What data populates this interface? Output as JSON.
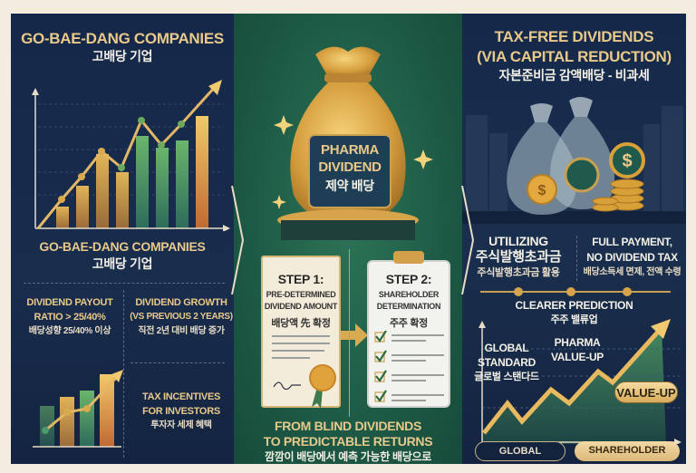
{
  "left": {
    "title_en": "GO-BAE-DANG COMPANIES",
    "title_ko": "고배당 기업",
    "subtitle_en": "GO-BAE-DANG COMPANIES",
    "subtitle_ko": "고배당 기업",
    "payout": {
      "line1": "DIVIDEND PAYOUT",
      "line2": "RATIO > 25/40%",
      "ko": "배당성향 25/40% 이상"
    },
    "growth": {
      "line1": "DIVIDEND GROWTH",
      "line2": "(VS PREVIOUS 2 YEARS)",
      "ko": "직전 2년 대비 배당 증가"
    },
    "tax": {
      "line1": "TAX INCENTIVES",
      "line2": "FOR INVESTORS",
      "ko": "투자자 세제 혜택"
    }
  },
  "center": {
    "bag_label": {
      "line1": "PHARMA",
      "line2": "DIVIDEND",
      "ko": "제약 배당"
    },
    "step1": {
      "title": "STEP 1:",
      "line1": "PRE-DETERMINED",
      "line2": "DIVIDEND AMOUNT",
      "ko": "배당액 先 확정"
    },
    "step2": {
      "title": "STEP 2:",
      "line1": "SHAREHOLDER",
      "line2": "DETERMINATION",
      "ko": "주주 확정"
    },
    "footer": {
      "line1": "FROM BLIND DIVIDENDS",
      "line2": "TO PREDICTABLE RETURNS",
      "ko": "깜깜이 배당에서 예측 가능한 배당으로"
    }
  },
  "right": {
    "title_line1": "TAX-FREE DIVIDENDS",
    "title_line2": "(VIA CAPITAL REDUCTION)",
    "title_ko": "자본준비금 감액배당 - 비과세",
    "utilizing": {
      "line1": "UTILIZING",
      "line2": "주식발행초과금",
      "ko": "주식발행초과금 활용"
    },
    "full_payment": {
      "line1": "FULL PAYMENT,",
      "line2": "NO DIVIDEND TAX",
      "ko": "배당소득세 면제, 전액 수령"
    },
    "clearer": {
      "en": "CLEARER PREDICTION",
      "ko": "주주 밸류업"
    },
    "global": {
      "line1": "GLOBAL",
      "line2": "STANDARD",
      "ko": "글로벌 스탠다드"
    },
    "pharma": {
      "line1": "PHARMA",
      "line2": "VALUE-UP"
    },
    "value_up_badge": "VALUE-UP",
    "pill_global": "GLOBAL STANDARD",
    "pill_shareholder": "SHAREHOLDER VALUE"
  },
  "colors": {
    "navy": "#15284a",
    "green": "#1d5a46",
    "gold": "#e9c98a",
    "background": "#f3ecdf"
  }
}
